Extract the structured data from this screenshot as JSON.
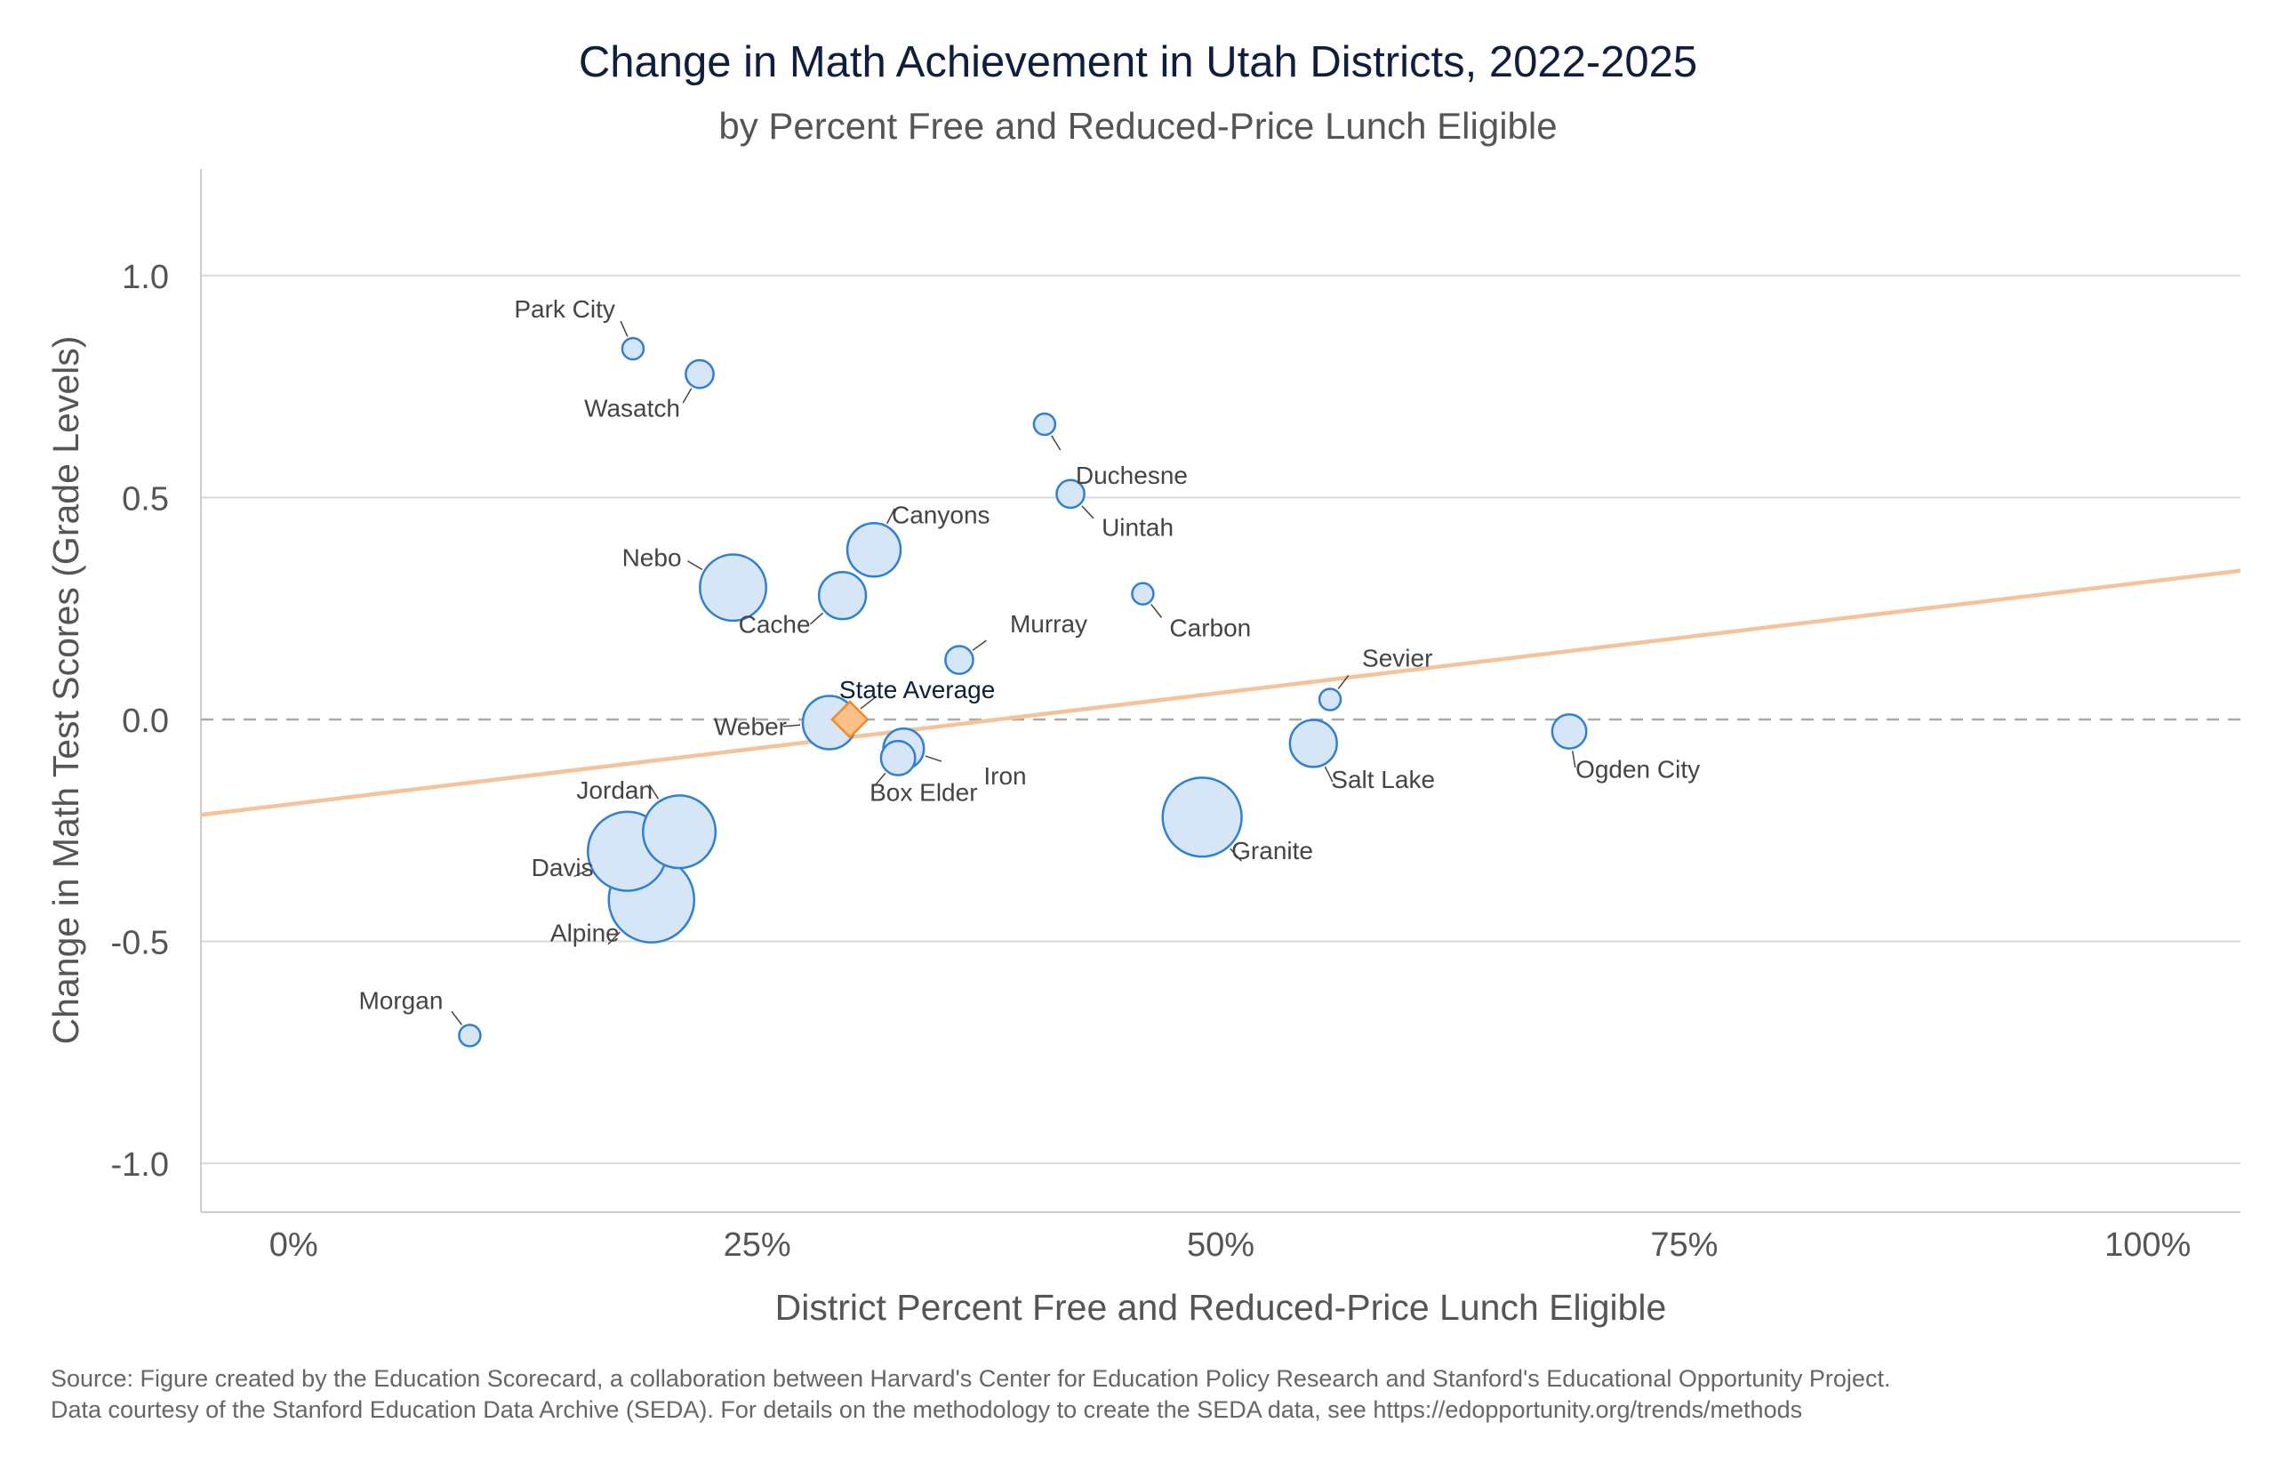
{
  "chart_data": {
    "type": "scatter",
    "title": "Change in Math Achievement in Utah Districts, 2022-2025",
    "subtitle": "by Percent Free and Reduced-Price Lunch Eligible",
    "xlabel": "District Percent Free and Reduced-Price Lunch Eligible",
    "ylabel": "Change in Math Test Scores (Grade Levels)",
    "xlim": [
      -0.05,
      1.05
    ],
    "ylim": [
      -1.11,
      1.24
    ],
    "x_ticks": [
      0,
      0.25,
      0.5,
      0.75,
      1.0
    ],
    "x_tick_labels": [
      "0%",
      "25%",
      "50%",
      "75%",
      "100%"
    ],
    "y_ticks": [
      1.0,
      0.5,
      0.0,
      -0.5,
      -1.0
    ],
    "y_tick_labels": [
      "1.0",
      "0.5",
      "0.0",
      "-0.5",
      "-1.0"
    ],
    "grid": "horizontal",
    "zero_line": "dashed",
    "colors": {
      "point_fill": "#d6e6f7",
      "point_stroke": "#2f80d1",
      "trend": "#f5c29a",
      "state_fill": "#fbbf8a",
      "state_stroke": "#f28c28",
      "grid": "#d9d9d9",
      "zero": "#aaaaaa"
    },
    "trend_line": {
      "x": [
        -0.05,
        1.05
      ],
      "y": [
        -0.215,
        0.335
      ]
    },
    "state_average": {
      "label": "State Average",
      "x": 0.3,
      "y": 0.0
    },
    "points": [
      {
        "name": "Park City",
        "x": 0.183,
        "y": 0.835,
        "size": 1
      },
      {
        "name": "Wasatch",
        "x": 0.219,
        "y": 0.778,
        "size": 2
      },
      {
        "name": "Duchesne",
        "x": 0.405,
        "y": 0.665,
        "size": 1
      },
      {
        "name": "Uintah",
        "x": 0.419,
        "y": 0.508,
        "size": 2
      },
      {
        "name": "Canyons",
        "x": 0.313,
        "y": 0.382,
        "size": 6
      },
      {
        "name": "Nebo",
        "x": 0.237,
        "y": 0.297,
        "size": 8
      },
      {
        "name": "Cache",
        "x": 0.296,
        "y": 0.279,
        "size": 5
      },
      {
        "name": "Carbon",
        "x": 0.458,
        "y": 0.283,
        "size": 1
      },
      {
        "name": "Murray",
        "x": 0.359,
        "y": 0.134,
        "size": 2
      },
      {
        "name": "Sevier",
        "x": 0.559,
        "y": 0.045,
        "size": 1
      },
      {
        "name": "Weber",
        "x": 0.289,
        "y": -0.007,
        "size": 6
      },
      {
        "name": "Ogden City",
        "x": 0.688,
        "y": -0.027,
        "size": 3
      },
      {
        "name": "Salt Lake",
        "x": 0.55,
        "y": -0.054,
        "size": 5
      },
      {
        "name": "Iron",
        "x": 0.329,
        "y": -0.066,
        "size": 4
      },
      {
        "name": "Box Elder",
        "x": 0.326,
        "y": -0.087,
        "size": 3
      },
      {
        "name": "Granite",
        "x": 0.49,
        "y": -0.22,
        "size": 10
      },
      {
        "name": "Jordan",
        "x": 0.208,
        "y": -0.253,
        "size": 9
      },
      {
        "name": "Davis",
        "x": 0.18,
        "y": -0.297,
        "size": 10
      },
      {
        "name": "Alpine",
        "x": 0.193,
        "y": -0.406,
        "size": 11
      },
      {
        "name": "Morgan",
        "x": 0.095,
        "y": -0.712,
        "size": 1
      }
    ]
  },
  "source": {
    "line1": "Source: Figure created by the Education Scorecard, a collaboration between Harvard's Center for Education Policy Research and Stanford's Educational Opportunity Project.",
    "line2": "Data courtesy of the Stanford Education Data Archive (SEDA). For details on the methodology to create the SEDA data, see https://edopportunity.org/trends/methods"
  }
}
